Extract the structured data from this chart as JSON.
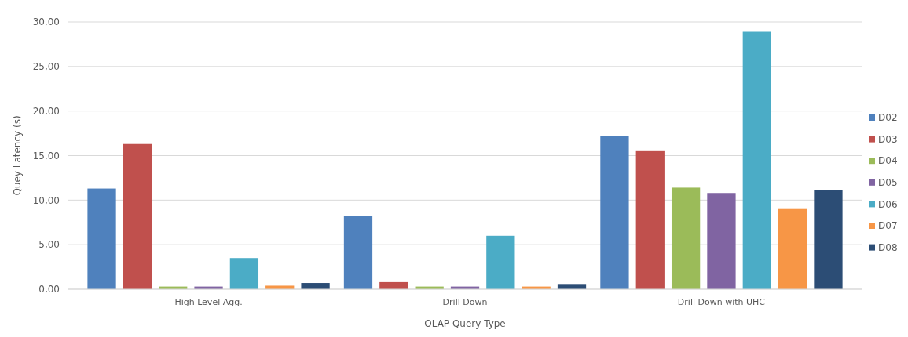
{
  "chart_data": {
    "type": "bar",
    "xlabel": "OLAP Query Type",
    "ylabel": "Quey Latency (s)",
    "categories": [
      "High Level Agg.",
      "Drill Down",
      "Drill Down with UHC"
    ],
    "series": [
      {
        "name": "D02",
        "color": "#4f81bd",
        "values": [
          11.3,
          8.2,
          17.2
        ]
      },
      {
        "name": "D03",
        "color": "#c0504d",
        "values": [
          16.3,
          0.8,
          15.5
        ]
      },
      {
        "name": "D04",
        "color": "#9bbb59",
        "values": [
          0.3,
          0.3,
          11.4
        ]
      },
      {
        "name": "D05",
        "color": "#8064a2",
        "values": [
          0.3,
          0.3,
          10.8
        ]
      },
      {
        "name": "D06",
        "color": "#4bacc6",
        "values": [
          3.5,
          6.0,
          28.9
        ]
      },
      {
        "name": "D07",
        "color": "#f79646",
        "values": [
          0.4,
          0.3,
          9.0
        ]
      },
      {
        "name": "D08",
        "color": "#2c4d75",
        "values": [
          0.7,
          0.5,
          11.1
        ]
      }
    ],
    "ylim": [
      0,
      30
    ],
    "yticks": [
      {
        "value": 0,
        "label": "0,00"
      },
      {
        "value": 5,
        "label": "5,00"
      },
      {
        "value": 10,
        "label": "10,00"
      },
      {
        "value": 15,
        "label": "15,00"
      },
      {
        "value": 20,
        "label": "20,00"
      },
      {
        "value": 25,
        "label": "25,00"
      },
      {
        "value": 30,
        "label": "30,00"
      }
    ],
    "grid": "y",
    "legend": "right"
  }
}
